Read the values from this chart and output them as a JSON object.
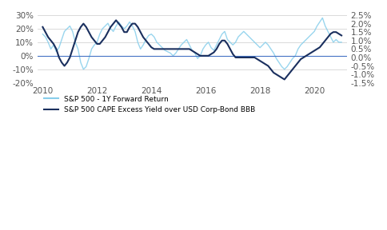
{
  "title": "",
  "left_label": "",
  "right_label": "",
  "left_ylim": [
    -20,
    30
  ],
  "right_ylim": [
    -1.5,
    2.5
  ],
  "left_yticks": [
    -20,
    -10,
    0,
    10,
    20,
    30
  ],
  "right_yticks": [
    -1.5,
    -1.0,
    -0.5,
    0.0,
    0.5,
    1.0,
    1.5,
    2.0,
    2.5
  ],
  "color_light": "#87CEEB",
  "color_dark": "#1a2f5e",
  "legend1": "S&P 500 - 1Y Forward Return",
  "legend2": "S&P 500 CAPE Excess Yield over USD Corp-Bond BBB",
  "dates": [
    2010.0,
    2010.1,
    2010.2,
    2010.3,
    2010.4,
    2010.5,
    2010.6,
    2010.7,
    2010.8,
    2010.9,
    2011.0,
    2011.1,
    2011.2,
    2011.3,
    2011.4,
    2011.5,
    2011.6,
    2011.7,
    2011.8,
    2011.9,
    2012.0,
    2012.1,
    2012.2,
    2012.3,
    2012.4,
    2012.5,
    2012.6,
    2012.7,
    2012.8,
    2012.9,
    2013.0,
    2013.1,
    2013.2,
    2013.3,
    2013.4,
    2013.5,
    2013.6,
    2013.7,
    2013.8,
    2013.9,
    2014.0,
    2014.1,
    2014.2,
    2014.3,
    2014.4,
    2014.5,
    2014.6,
    2014.7,
    2014.8,
    2014.9,
    2015.0,
    2015.1,
    2015.2,
    2015.3,
    2015.4,
    2015.5,
    2015.6,
    2015.7,
    2015.8,
    2015.9,
    2016.0,
    2016.1,
    2016.2,
    2016.3,
    2016.4,
    2016.5,
    2016.6,
    2016.7,
    2016.8,
    2016.9,
    2017.0,
    2017.1,
    2017.2,
    2017.3,
    2017.4,
    2017.5,
    2017.6,
    2017.7,
    2017.8,
    2017.9,
    2018.0,
    2018.1,
    2018.2,
    2018.3,
    2018.4,
    2018.5,
    2018.6,
    2018.7,
    2018.8,
    2018.9,
    2019.0,
    2019.1,
    2019.2,
    2019.3,
    2019.4,
    2019.5,
    2019.6,
    2019.7,
    2019.8,
    2019.9,
    2020.0,
    2020.1,
    2020.2,
    2020.3,
    2020.4,
    2020.5,
    2020.6,
    2020.7,
    2020.8,
    2020.9,
    2021.0
  ],
  "sp500_forward": [
    16,
    14,
    10,
    5,
    8,
    3,
    6,
    12,
    18,
    20,
    22,
    18,
    10,
    5,
    -5,
    -10,
    -8,
    -2,
    5,
    8,
    10,
    16,
    20,
    22,
    24,
    20,
    18,
    22,
    25,
    22,
    20,
    22,
    25,
    22,
    18,
    10,
    5,
    8,
    12,
    15,
    16,
    14,
    10,
    8,
    6,
    4,
    3,
    2,
    0,
    2,
    5,
    8,
    10,
    12,
    8,
    4,
    2,
    -2,
    0,
    5,
    8,
    10,
    6,
    4,
    8,
    12,
    16,
    18,
    12,
    10,
    8,
    10,
    14,
    16,
    18,
    16,
    14,
    12,
    10,
    8,
    6,
    8,
    10,
    8,
    5,
    2,
    -2,
    -5,
    -8,
    -10,
    -8,
    -5,
    -2,
    0,
    5,
    8,
    10,
    12,
    14,
    16,
    18,
    22,
    25,
    28,
    22,
    18,
    14,
    10,
    12,
    10,
    10
  ],
  "cape_excess": [
    1.8,
    1.5,
    1.2,
    1.0,
    0.8,
    0.5,
    0.0,
    -0.3,
    -0.5,
    -0.3,
    0.0,
    0.5,
    1.0,
    1.5,
    1.8,
    2.0,
    1.8,
    1.5,
    1.2,
    1.0,
    0.8,
    0.8,
    1.0,
    1.2,
    1.5,
    1.8,
    2.0,
    2.2,
    2.0,
    1.8,
    1.5,
    1.5,
    1.8,
    2.0,
    2.0,
    1.8,
    1.5,
    1.2,
    1.0,
    0.8,
    0.6,
    0.5,
    0.5,
    0.5,
    0.5,
    0.5,
    0.5,
    0.5,
    0.5,
    0.5,
    0.5,
    0.5,
    0.5,
    0.5,
    0.5,
    0.4,
    0.3,
    0.2,
    0.1,
    0.1,
    0.1,
    0.1,
    0.2,
    0.3,
    0.5,
    0.8,
    1.0,
    1.0,
    0.8,
    0.5,
    0.2,
    0.0,
    0.0,
    0.0,
    0.0,
    0.0,
    0.0,
    0.0,
    0.0,
    -0.1,
    -0.2,
    -0.3,
    -0.4,
    -0.5,
    -0.7,
    -0.9,
    -1.0,
    -1.1,
    -1.2,
    -1.3,
    -1.1,
    -0.9,
    -0.7,
    -0.5,
    -0.3,
    -0.1,
    0.0,
    0.1,
    0.2,
    0.3,
    0.4,
    0.5,
    0.6,
    0.8,
    1.0,
    1.2,
    1.4,
    1.5,
    1.5,
    1.4,
    1.3
  ],
  "xticks": [
    2010,
    2012,
    2014,
    2016,
    2018,
    2020
  ],
  "xtick_labels": [
    "2010",
    "2012",
    "2014",
    "2016",
    "2018",
    "2020"
  ],
  "bg_color": "#ffffff",
  "grid_color": "#cccccc",
  "axis_color": "#4472c4"
}
